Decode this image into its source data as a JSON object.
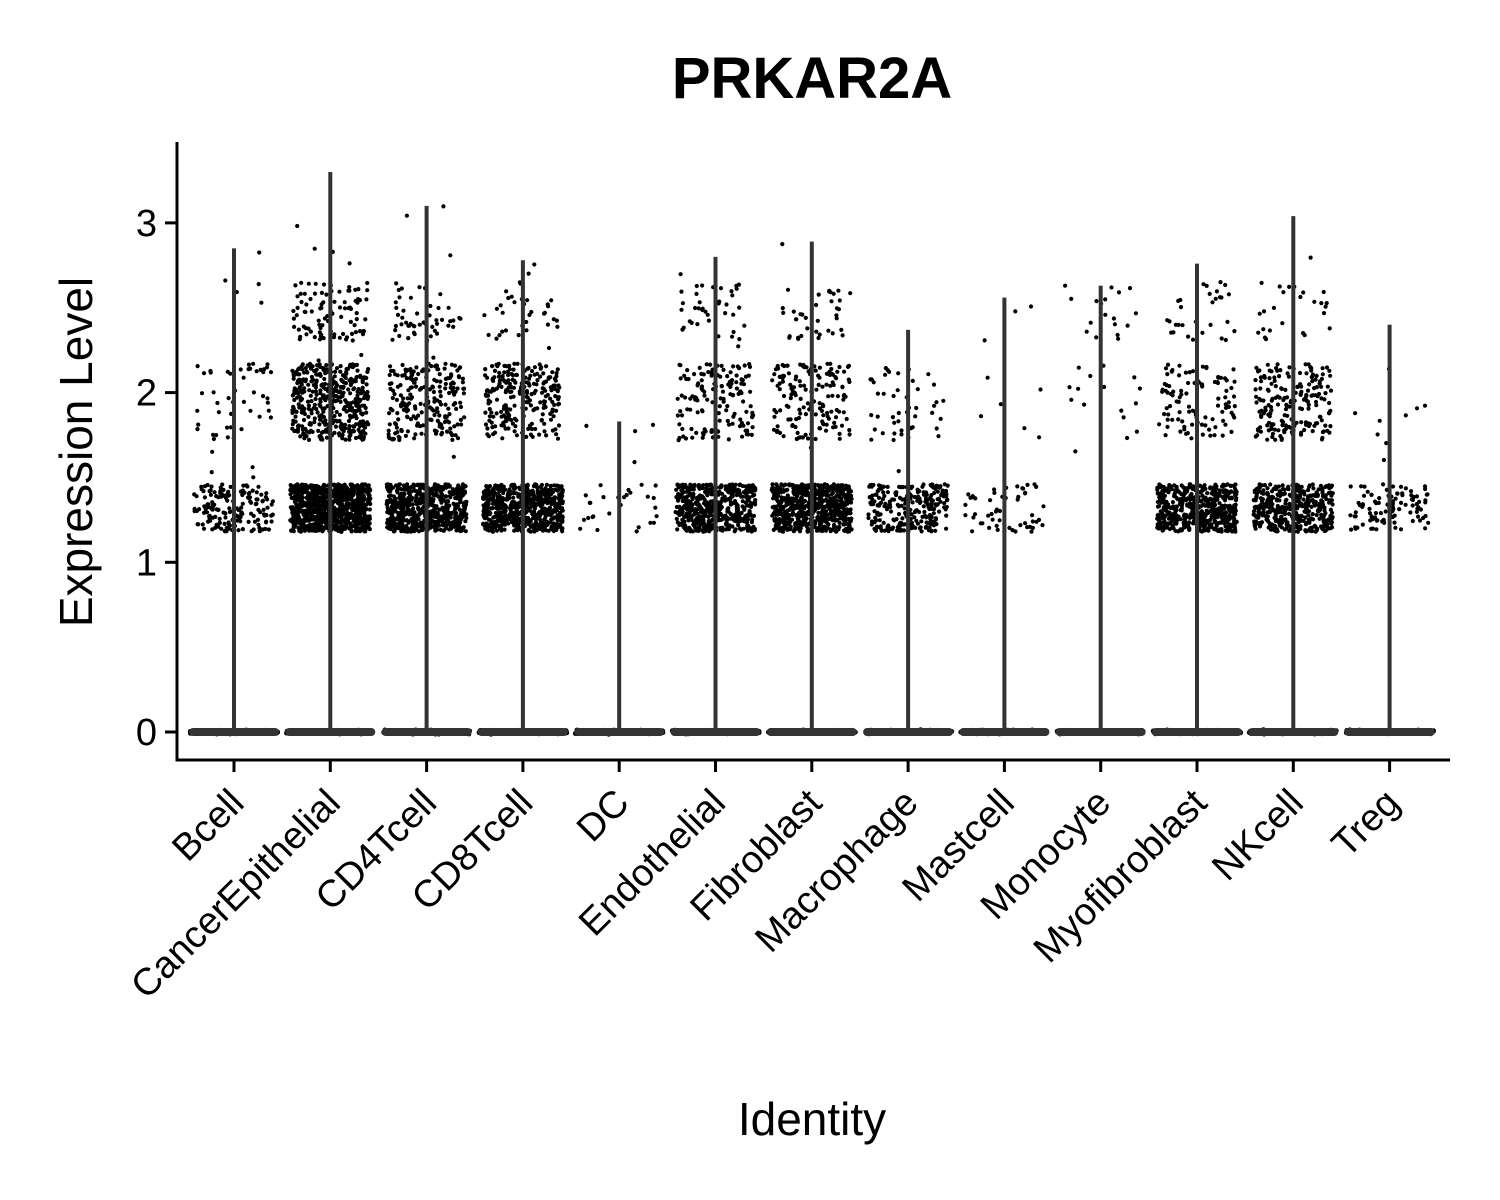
{
  "chart_data": {
    "type": "violin",
    "title": "PRKAR2A",
    "xlabel": "Identity",
    "ylabel": "Expression Level",
    "ylim": [
      -0.15,
      3.5
    ],
    "yticks": [
      0,
      1,
      2,
      3
    ],
    "ytick_labels": [
      "0",
      "1",
      "2",
      "3"
    ],
    "point_color": "#000000",
    "violin_color": "#333333",
    "categories": [
      "Bcell",
      "CancerEpithelial",
      "CD4Tcell",
      "CD8Tcell",
      "DC",
      "Endothelial",
      "Fibroblast",
      "Macrophage",
      "Mastcell",
      "Monocyte",
      "Myofibroblast",
      "NKcell",
      "Treg"
    ],
    "max_values": [
      2.85,
      3.3,
      3.1,
      2.78,
      1.83,
      2.8,
      2.89,
      2.37,
      2.56,
      2.63,
      2.76,
      3.04,
      2.4
    ]
  }
}
